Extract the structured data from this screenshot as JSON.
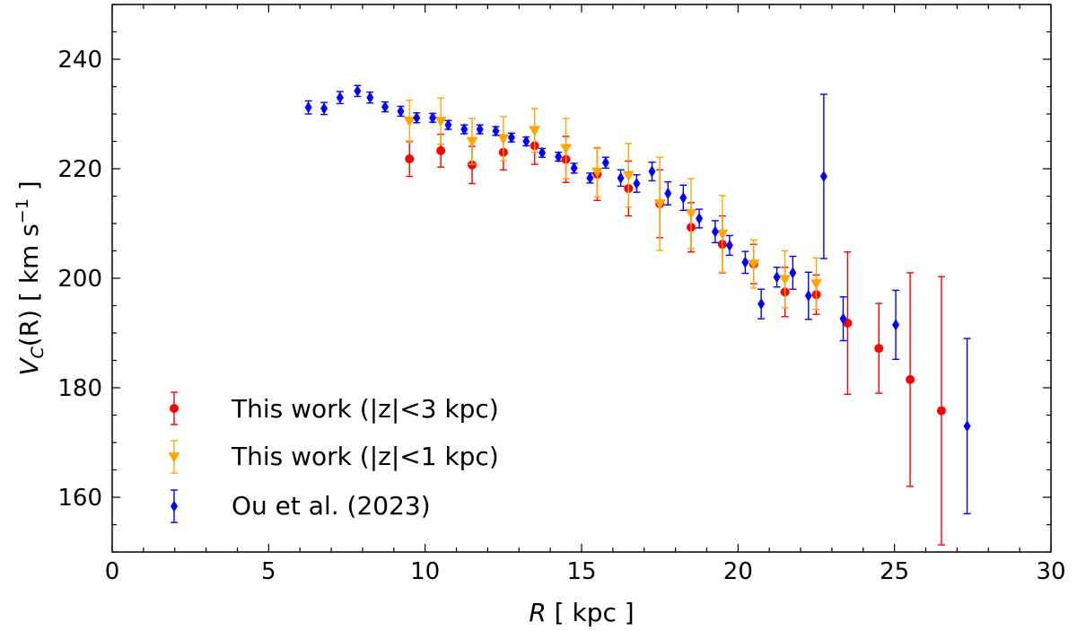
{
  "chart_data": {
    "type": "scatter",
    "xlabel": {
      "var": "R",
      "unit": "[ kpc ]"
    },
    "ylabel": {
      "var": "V",
      "sub": "C",
      "arg": "(R)",
      "unit_pre": "[ km s",
      "unit_sup": "−1",
      "unit_post": " ]"
    },
    "xlim": [
      0,
      30
    ],
    "ylim": [
      150,
      250
    ],
    "x_ticks": [
      0,
      5,
      10,
      15,
      20,
      25,
      30
    ],
    "y_ticks": [
      160,
      180,
      200,
      220,
      240
    ],
    "legend_position": "lower-left",
    "series": [
      {
        "name": "This work (|z|<3 kpc)",
        "marker": "circle",
        "color": "#ff0000",
        "points": [
          {
            "x": 9.5,
            "y": 221.8,
            "err": 3.2
          },
          {
            "x": 10.5,
            "y": 223.3,
            "err": 3.0
          },
          {
            "x": 11.5,
            "y": 220.7,
            "err": 3.4
          },
          {
            "x": 12.5,
            "y": 223.0,
            "err": 3.2
          },
          {
            "x": 13.5,
            "y": 224.2,
            "err": 3.4
          },
          {
            "x": 14.5,
            "y": 221.7,
            "err": 4.2
          },
          {
            "x": 15.5,
            "y": 219.0,
            "err": 4.8
          },
          {
            "x": 16.5,
            "y": 216.4,
            "err": 5.0
          },
          {
            "x": 17.5,
            "y": 213.6,
            "err": 6.2
          },
          {
            "x": 18.5,
            "y": 209.3,
            "err": 4.5
          },
          {
            "x": 19.5,
            "y": 206.2,
            "err": 5.2
          },
          {
            "x": 20.5,
            "y": 202.6,
            "err": 3.6
          },
          {
            "x": 21.5,
            "y": 197.5,
            "err": 4.5
          },
          {
            "x": 22.5,
            "y": 197.0,
            "err": 3.6
          },
          {
            "x": 23.5,
            "y": 191.8,
            "err": 13.0
          },
          {
            "x": 24.5,
            "y": 187.2,
            "err": 8.2
          },
          {
            "x": 25.5,
            "y": 181.5,
            "err": 19.5
          },
          {
            "x": 26.5,
            "y": 175.8,
            "err": 24.5
          }
        ]
      },
      {
        "name": "This work (|z|<1 kpc)",
        "marker": "triangle-down",
        "color": "#ffa500",
        "points": [
          {
            "x": 9.5,
            "y": 228.7,
            "err": 3.8
          },
          {
            "x": 10.5,
            "y": 228.7,
            "err": 4.2
          },
          {
            "x": 11.5,
            "y": 225.0,
            "err": 4.2
          },
          {
            "x": 12.5,
            "y": 225.5,
            "err": 4.0
          },
          {
            "x": 13.5,
            "y": 227.0,
            "err": 4.0
          },
          {
            "x": 14.5,
            "y": 223.7,
            "err": 5.5
          },
          {
            "x": 15.5,
            "y": 219.4,
            "err": 4.5
          },
          {
            "x": 16.5,
            "y": 218.8,
            "err": 5.8
          },
          {
            "x": 17.5,
            "y": 213.6,
            "err": 8.5
          },
          {
            "x": 18.5,
            "y": 211.8,
            "err": 6.4
          },
          {
            "x": 19.5,
            "y": 208.1,
            "err": 7.0
          },
          {
            "x": 20.5,
            "y": 202.6,
            "err": 4.4
          },
          {
            "x": 21.5,
            "y": 199.8,
            "err": 5.2
          },
          {
            "x": 22.5,
            "y": 199.0,
            "err": 4.7
          }
        ]
      },
      {
        "name": "Ou et al. (2023)",
        "marker": "diamond",
        "color": "#0000ff",
        "points": [
          {
            "x": 6.27,
            "y": 231.2,
            "err": 1.2
          },
          {
            "x": 6.77,
            "y": 231.0,
            "err": 1.1
          },
          {
            "x": 7.28,
            "y": 233.0,
            "err": 1.1
          },
          {
            "x": 7.84,
            "y": 234.2,
            "err": 1.0
          },
          {
            "x": 8.24,
            "y": 233.0,
            "err": 1.0
          },
          {
            "x": 8.72,
            "y": 231.3,
            "err": 0.9
          },
          {
            "x": 9.22,
            "y": 230.5,
            "err": 0.9
          },
          {
            "x": 9.73,
            "y": 229.3,
            "err": 0.9
          },
          {
            "x": 10.24,
            "y": 229.3,
            "err": 0.8
          },
          {
            "x": 10.74,
            "y": 228.0,
            "err": 0.8
          },
          {
            "x": 11.25,
            "y": 227.2,
            "err": 0.8
          },
          {
            "x": 11.75,
            "y": 227.2,
            "err": 0.8
          },
          {
            "x": 12.26,
            "y": 226.9,
            "err": 0.8
          },
          {
            "x": 12.76,
            "y": 225.7,
            "err": 0.8
          },
          {
            "x": 13.23,
            "y": 225.0,
            "err": 0.8
          },
          {
            "x": 13.74,
            "y": 222.9,
            "err": 0.8
          },
          {
            "x": 14.26,
            "y": 222.2,
            "err": 0.8
          },
          {
            "x": 14.76,
            "y": 220.1,
            "err": 0.9
          },
          {
            "x": 15.27,
            "y": 218.3,
            "err": 0.9
          },
          {
            "x": 15.77,
            "y": 221.1,
            "err": 1.0
          },
          {
            "x": 16.25,
            "y": 218.3,
            "err": 1.5
          },
          {
            "x": 16.76,
            "y": 217.3,
            "err": 1.6
          },
          {
            "x": 17.25,
            "y": 219.5,
            "err": 1.7
          },
          {
            "x": 17.76,
            "y": 215.5,
            "err": 2.1
          },
          {
            "x": 18.25,
            "y": 214.7,
            "err": 2.3
          },
          {
            "x": 18.76,
            "y": 210.9,
            "err": 1.7
          },
          {
            "x": 19.27,
            "y": 208.5,
            "err": 2.0
          },
          {
            "x": 19.73,
            "y": 206.0,
            "err": 1.8
          },
          {
            "x": 20.23,
            "y": 202.9,
            "err": 2.0
          },
          {
            "x": 20.74,
            "y": 195.3,
            "err": 2.7
          },
          {
            "x": 21.24,
            "y": 200.2,
            "err": 1.8
          },
          {
            "x": 21.75,
            "y": 201.0,
            "err": 3.0
          },
          {
            "x": 22.25,
            "y": 196.8,
            "err": 4.3
          },
          {
            "x": 22.74,
            "y": 218.6,
            "err": 15.0
          },
          {
            "x": 23.36,
            "y": 192.6,
            "err": 4.0
          },
          {
            "x": 25.04,
            "y": 191.5,
            "err": 6.3
          },
          {
            "x": 27.32,
            "y": 173.0,
            "err": 16.0
          }
        ]
      }
    ]
  }
}
